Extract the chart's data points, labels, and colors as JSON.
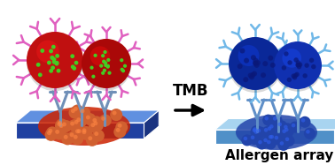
{
  "background_color": "#ffffff",
  "arrow_text": "TMB",
  "caption_text": "Allergen array",
  "caption_fontsize": 11,
  "arrow_fontsize": 12,
  "left_platform_top_color": "#6090e0",
  "left_platform_front_color": "#2040a0",
  "left_platform_side_color": "#3050c0",
  "right_platform_top_color": "#a8d4f0",
  "right_platform_front_color": "#5090c8",
  "left_spot_bg_color": "#cc2200",
  "left_spot_color": "#d06030",
  "right_spot_color": "#2244aa",
  "left_ball_color": "#c01010",
  "left_ball_color2": "#aa0808",
  "left_spike_color": "#e060c0",
  "left_dot_color": "#44cc22",
  "right_ball_color": "#0a2898",
  "right_ball_color2": "#1030b0",
  "right_spike_color": "#70b8e8",
  "right_bump_color": "#0a1878",
  "stem_color_left": "#7090b8",
  "stem_color_right": "#6090c8"
}
